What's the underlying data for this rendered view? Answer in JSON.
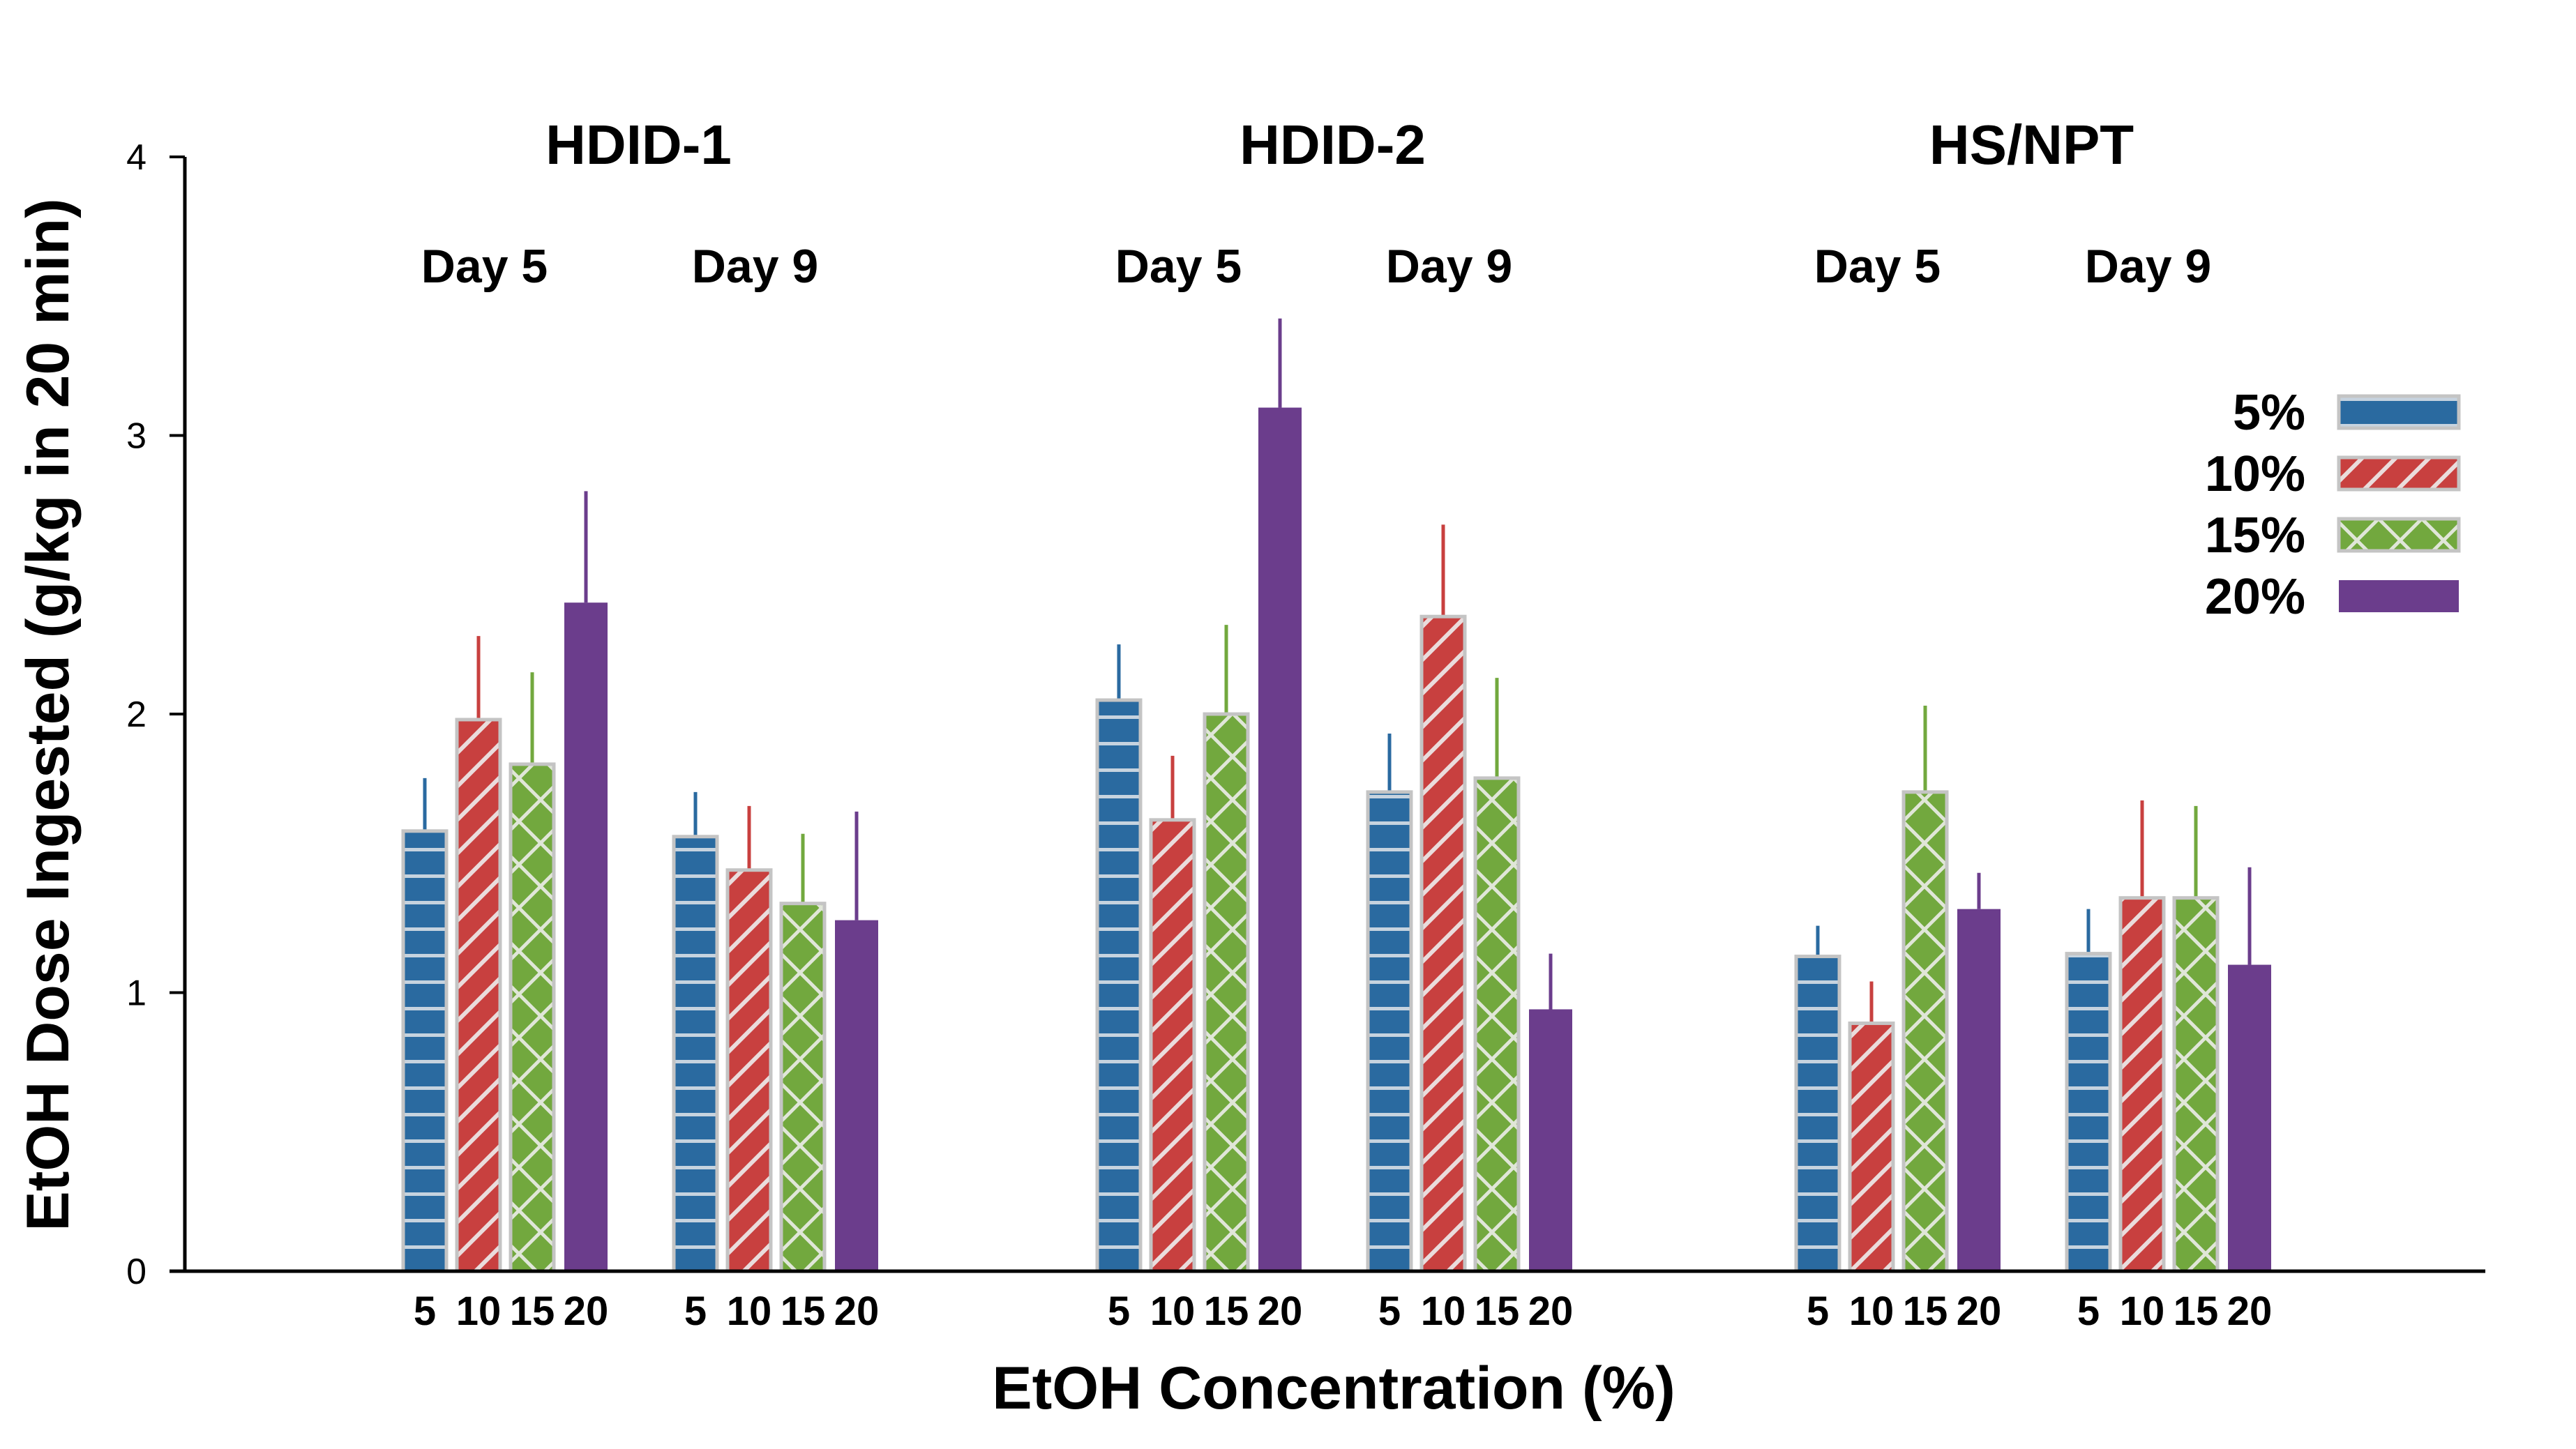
{
  "chart_data": {
    "type": "bar",
    "xlabel": "EtOH Concentration (%)",
    "ylabel": "EtOH Dose Ingested (g/kg in 20 min)",
    "ylim": [
      0,
      4
    ],
    "yticks": [
      "0",
      "1",
      "2",
      "3",
      "4"
    ],
    "legend": {
      "position": "top-right",
      "entries": [
        {
          "label": "5%",
          "key": "c5"
        },
        {
          "label": "10%",
          "key": "c10"
        },
        {
          "label": "15%",
          "key": "c15"
        },
        {
          "label": "20%",
          "key": "c20"
        }
      ]
    },
    "series_styles": {
      "c5": {
        "color": "#2a6aa0",
        "pattern": "horizontal-lines"
      },
      "c10": {
        "color": "#c8403f",
        "pattern": "diagonal-lines"
      },
      "c15": {
        "color": "#72a83e",
        "pattern": "crosshatch"
      },
      "c20": {
        "color": "#6b3d8c",
        "pattern": "solid"
      }
    },
    "categories": [
      "5",
      "10",
      "15",
      "20"
    ],
    "groups": [
      {
        "title": "HDID-1",
        "days": [
          {
            "label": "Day 5",
            "values": [
              1.58,
              1.98,
              1.82,
              2.4
            ],
            "errors": [
              0.19,
              0.3,
              0.33,
              0.4
            ]
          },
          {
            "label": "Day 9",
            "values": [
              1.56,
              1.44,
              1.32,
              1.26
            ],
            "errors": [
              0.16,
              0.23,
              0.25,
              0.39
            ]
          }
        ]
      },
      {
        "title": "HDID-2",
        "days": [
          {
            "label": "Day 5",
            "values": [
              2.05,
              1.62,
              2.0,
              3.1
            ],
            "errors": [
              0.2,
              0.23,
              0.32,
              0.32
            ]
          },
          {
            "label": "Day 9",
            "values": [
              1.72,
              2.35,
              1.77,
              0.94
            ],
            "errors": [
              0.21,
              0.33,
              0.36,
              0.2
            ]
          }
        ]
      },
      {
        "title": "HS/NPT",
        "days": [
          {
            "label": "Day 5",
            "values": [
              1.13,
              0.89,
              1.72,
              1.3
            ],
            "errors": [
              0.11,
              0.15,
              0.31,
              0.13
            ]
          },
          {
            "label": "Day 9",
            "values": [
              1.14,
              1.34,
              1.34,
              1.1
            ],
            "errors": [
              0.16,
              0.35,
              0.33,
              0.35
            ]
          }
        ]
      }
    ]
  }
}
